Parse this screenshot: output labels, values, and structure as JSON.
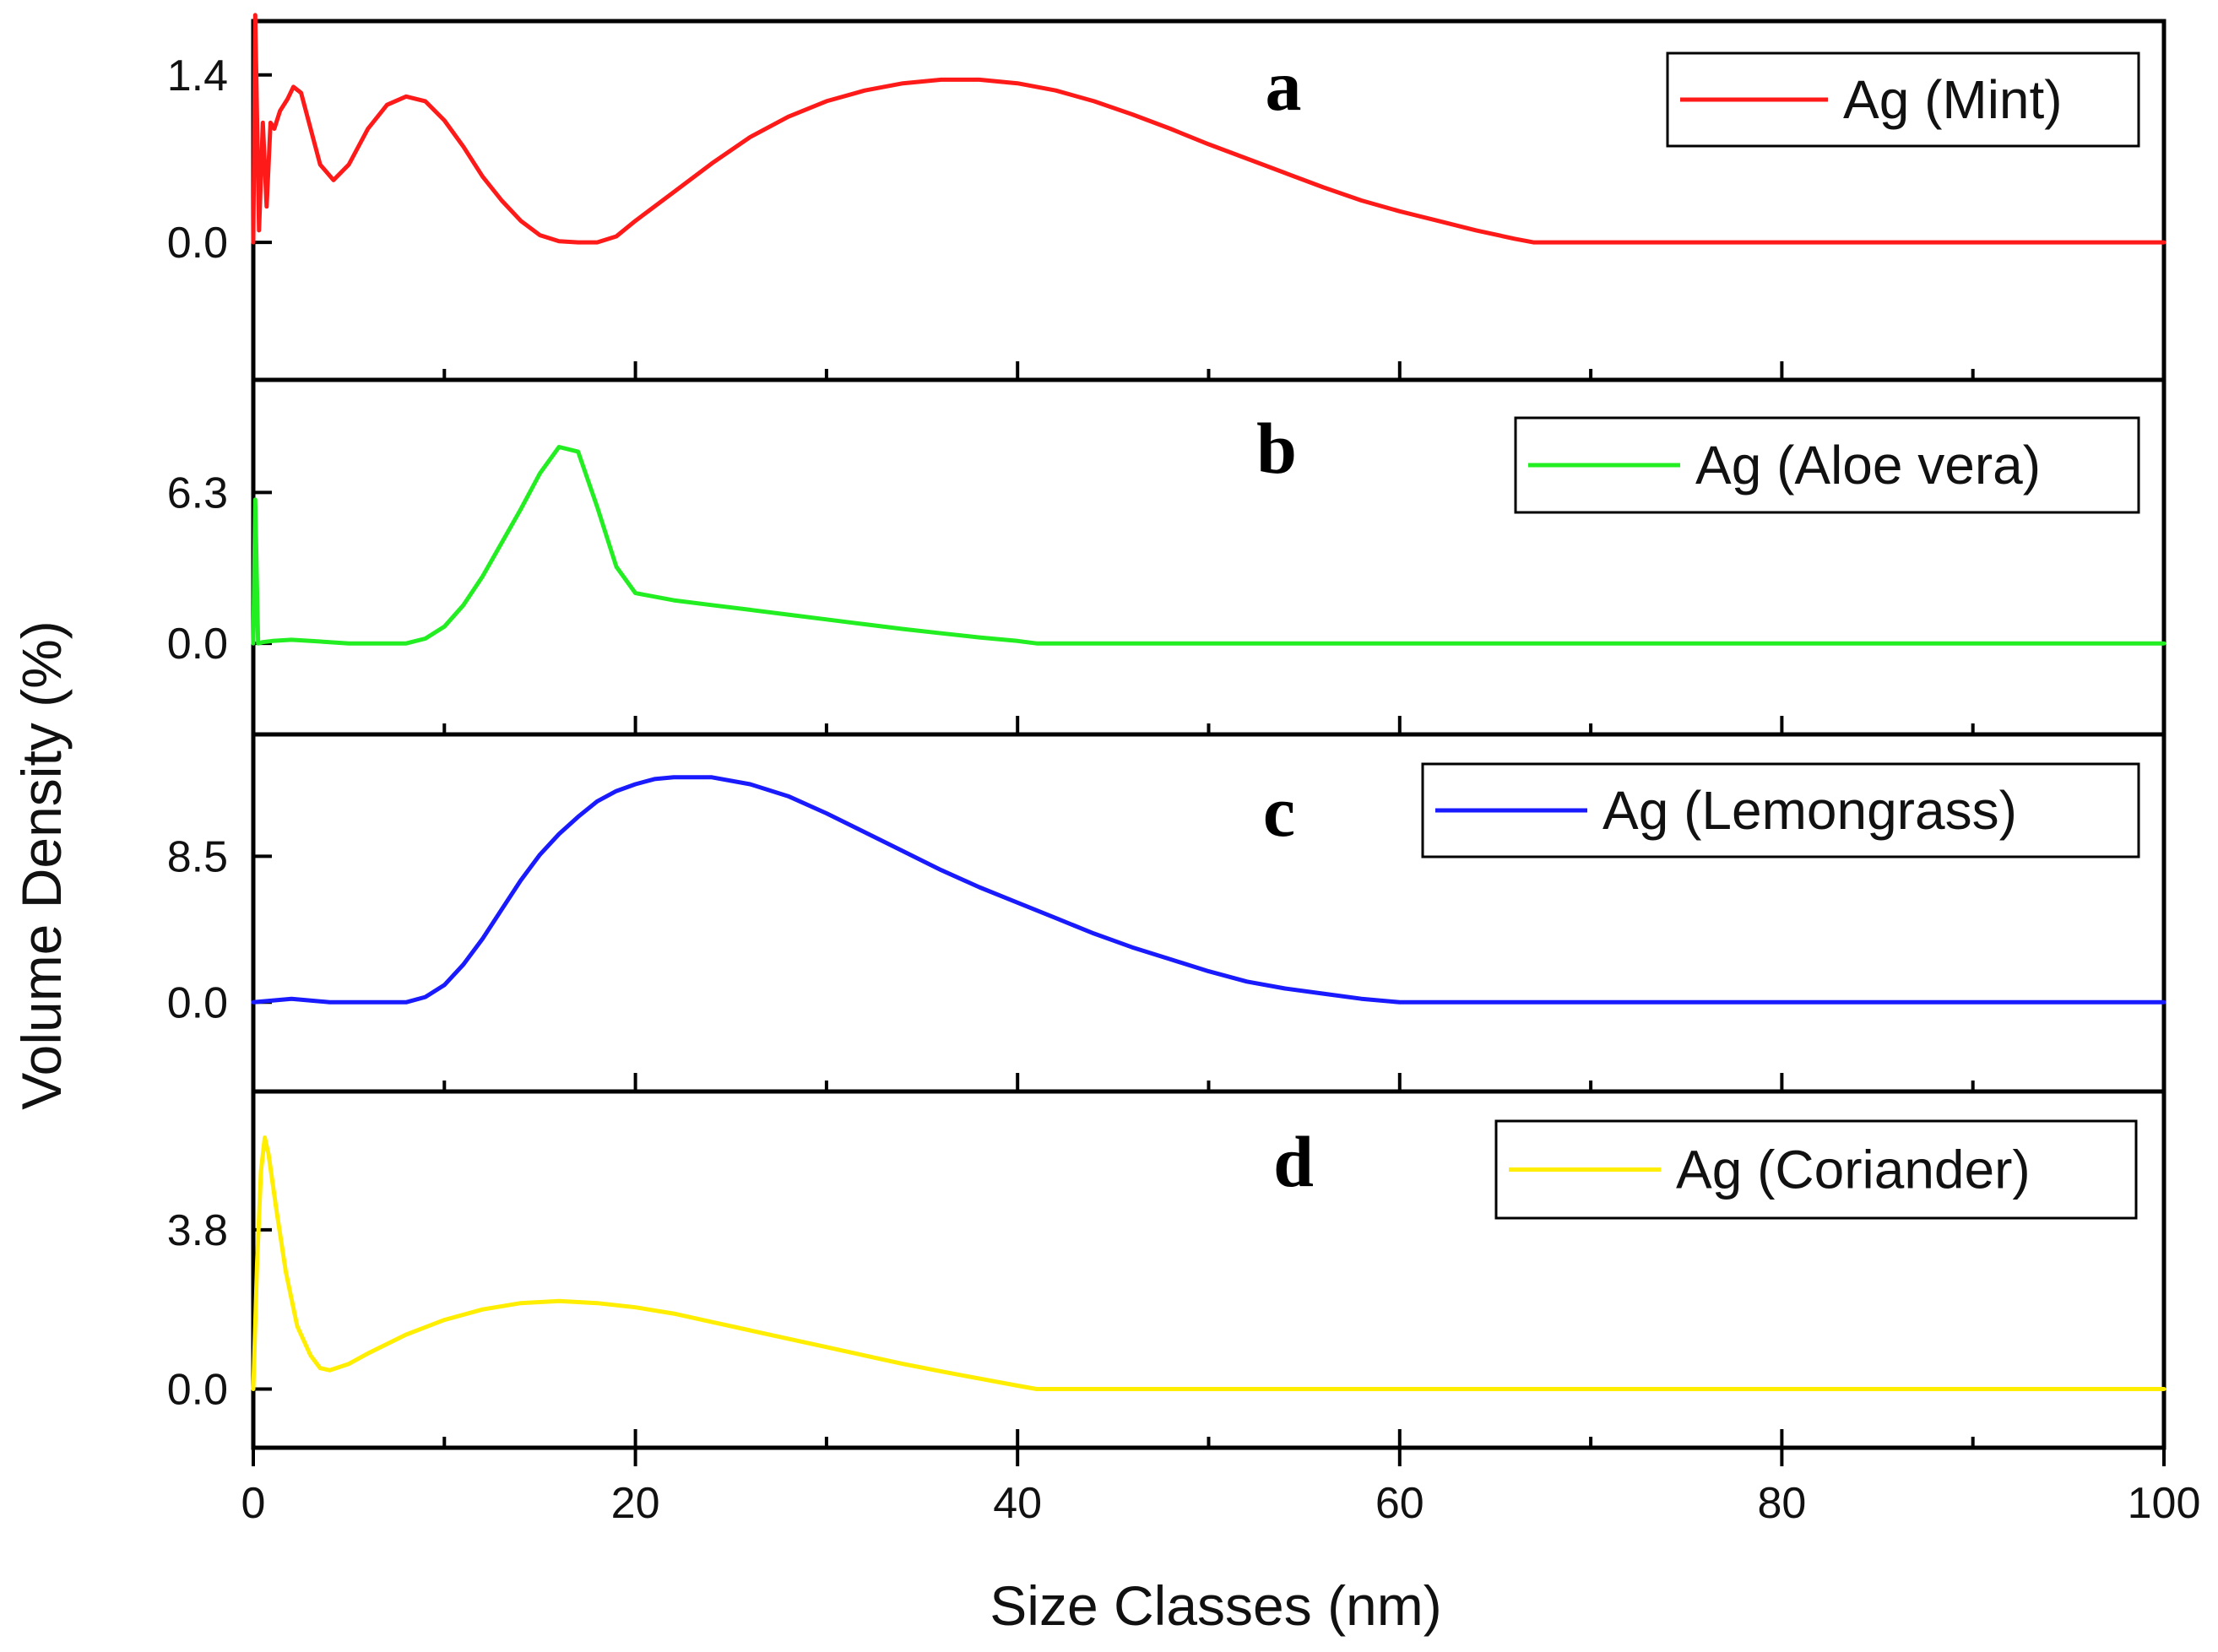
{
  "chart_data": {
    "type": "line",
    "xlabel": "Size Classes (nm)",
    "ylabel": "Volume Density (%)",
    "xlim": [
      0,
      100
    ],
    "x_ticks": [
      "0",
      "20",
      "40",
      "60",
      "80",
      "100"
    ],
    "x_tick_values": [
      0,
      20,
      40,
      60,
      80,
      100
    ],
    "panels": [
      {
        "letter": "a",
        "legend": "Ag (Mint)",
        "color": "#ff1a1a",
        "ylim": [
          -1.15,
          1.85
        ],
        "y_ticks": [
          "0.0",
          "1.4"
        ],
        "y_tick_values": [
          0.0,
          1.4
        ],
        "points": [
          [
            0,
            0
          ],
          [
            0.1,
            1.9
          ],
          [
            0.3,
            0.1
          ],
          [
            0.5,
            1.0
          ],
          [
            0.7,
            0.3
          ],
          [
            0.9,
            1.0
          ],
          [
            1.1,
            0.95
          ],
          [
            1.4,
            1.1
          ],
          [
            1.8,
            1.2
          ],
          [
            2.1,
            1.3
          ],
          [
            2.5,
            1.25
          ],
          [
            3,
            0.95
          ],
          [
            3.5,
            0.65
          ],
          [
            4.2,
            0.52
          ],
          [
            5,
            0.65
          ],
          [
            6,
            0.95
          ],
          [
            7,
            1.15
          ],
          [
            8,
            1.22
          ],
          [
            9,
            1.18
          ],
          [
            10,
            1.02
          ],
          [
            11,
            0.8
          ],
          [
            12,
            0.55
          ],
          [
            13,
            0.35
          ],
          [
            14,
            0.18
          ],
          [
            15,
            0.06
          ],
          [
            16,
            0.01
          ],
          [
            17,
            0.0
          ],
          [
            18,
            0.0
          ],
          [
            19,
            0.05
          ],
          [
            20,
            0.18
          ],
          [
            22,
            0.42
          ],
          [
            24,
            0.66
          ],
          [
            26,
            0.88
          ],
          [
            28,
            1.05
          ],
          [
            30,
            1.18
          ],
          [
            32,
            1.27
          ],
          [
            34,
            1.33
          ],
          [
            36,
            1.36
          ],
          [
            38,
            1.36
          ],
          [
            40,
            1.33
          ],
          [
            42,
            1.27
          ],
          [
            44,
            1.18
          ],
          [
            46,
            1.07
          ],
          [
            48,
            0.95
          ],
          [
            50,
            0.82
          ],
          [
            52,
            0.7
          ],
          [
            54,
            0.58
          ],
          [
            56,
            0.46
          ],
          [
            58,
            0.35
          ],
          [
            60,
            0.26
          ],
          [
            62,
            0.18
          ],
          [
            64,
            0.1
          ],
          [
            66,
            0.03
          ],
          [
            67,
            0.0
          ],
          [
            100,
            0.0
          ]
        ]
      },
      {
        "letter": "b",
        "legend": "Ag (Aloe vera)",
        "color": "#22ee22",
        "ylim": [
          -3.8,
          11.0
        ],
        "y_ticks": [
          "0.0",
          "6.3"
        ],
        "y_tick_values": [
          0.0,
          6.3
        ],
        "points": [
          [
            0,
            0
          ],
          [
            0.1,
            6.0
          ],
          [
            0.25,
            0.0
          ],
          [
            0.5,
            0.05
          ],
          [
            1,
            0.1
          ],
          [
            2,
            0.15
          ],
          [
            3,
            0.1
          ],
          [
            4,
            0.05
          ],
          [
            5,
            0.0
          ],
          [
            8,
            0.0
          ],
          [
            9,
            0.2
          ],
          [
            10,
            0.7
          ],
          [
            11,
            1.6
          ],
          [
            12,
            2.8
          ],
          [
            13,
            4.2
          ],
          [
            14,
            5.6
          ],
          [
            15,
            7.1
          ],
          [
            16,
            8.2
          ],
          [
            17,
            8.0
          ],
          [
            18,
            5.7
          ],
          [
            19,
            3.2
          ],
          [
            20,
            2.1
          ],
          [
            22,
            1.8
          ],
          [
            24,
            1.6
          ],
          [
            26,
            1.4
          ],
          [
            28,
            1.2
          ],
          [
            30,
            1.0
          ],
          [
            32,
            0.8
          ],
          [
            34,
            0.6
          ],
          [
            36,
            0.42
          ],
          [
            38,
            0.25
          ],
          [
            40,
            0.1
          ],
          [
            41,
            0.0
          ],
          [
            100,
            0.0
          ]
        ]
      },
      {
        "letter": "c",
        "legend": "Ag (Lemongrass)",
        "color": "#1a1aff",
        "ylim": [
          -5.2,
          15.6
        ],
        "y_ticks": [
          "0.0",
          "8.5"
        ],
        "y_tick_values": [
          0.0,
          8.5
        ],
        "points": [
          [
            0,
            0
          ],
          [
            1,
            0.1
          ],
          [
            2,
            0.2
          ],
          [
            3,
            0.1
          ],
          [
            4,
            0.0
          ],
          [
            8,
            0.0
          ],
          [
            9,
            0.3
          ],
          [
            10,
            1.0
          ],
          [
            11,
            2.2
          ],
          [
            12,
            3.7
          ],
          [
            13,
            5.4
          ],
          [
            14,
            7.1
          ],
          [
            15,
            8.6
          ],
          [
            16,
            9.8
          ],
          [
            17,
            10.8
          ],
          [
            18,
            11.7
          ],
          [
            19,
            12.3
          ],
          [
            20,
            12.7
          ],
          [
            21,
            13.0
          ],
          [
            22,
            13.1
          ],
          [
            24,
            13.1
          ],
          [
            26,
            12.7
          ],
          [
            28,
            12.0
          ],
          [
            30,
            11.0
          ],
          [
            32,
            9.9
          ],
          [
            34,
            8.8
          ],
          [
            36,
            7.7
          ],
          [
            38,
            6.7
          ],
          [
            40,
            5.8
          ],
          [
            42,
            4.9
          ],
          [
            44,
            4.0
          ],
          [
            46,
            3.2
          ],
          [
            48,
            2.5
          ],
          [
            50,
            1.8
          ],
          [
            52,
            1.2
          ],
          [
            54,
            0.8
          ],
          [
            56,
            0.5
          ],
          [
            58,
            0.2
          ],
          [
            60,
            0.0
          ],
          [
            100,
            0.0
          ]
        ]
      },
      {
        "letter": "d",
        "legend": "Ag (Coriander)",
        "color": "#ffee00",
        "ylim": [
          -1.4,
          7.1
        ],
        "y_ticks": [
          "0.0",
          "3.8"
        ],
        "y_tick_values": [
          0.0,
          3.8
        ],
        "points": [
          [
            0,
            0
          ],
          [
            0.2,
            3.0
          ],
          [
            0.4,
            5.2
          ],
          [
            0.6,
            6.0
          ],
          [
            0.8,
            5.6
          ],
          [
            1.2,
            4.3
          ],
          [
            1.7,
            2.8
          ],
          [
            2.3,
            1.5
          ],
          [
            3,
            0.8
          ],
          [
            3.5,
            0.5
          ],
          [
            4,
            0.45
          ],
          [
            5,
            0.6
          ],
          [
            6,
            0.85
          ],
          [
            8,
            1.3
          ],
          [
            10,
            1.65
          ],
          [
            12,
            1.9
          ],
          [
            14,
            2.05
          ],
          [
            16,
            2.1
          ],
          [
            18,
            2.05
          ],
          [
            20,
            1.95
          ],
          [
            22,
            1.8
          ],
          [
            24,
            1.6
          ],
          [
            26,
            1.4
          ],
          [
            28,
            1.2
          ],
          [
            30,
            1.0
          ],
          [
            32,
            0.8
          ],
          [
            34,
            0.6
          ],
          [
            36,
            0.42
          ],
          [
            38,
            0.25
          ],
          [
            40,
            0.08
          ],
          [
            41,
            0.0
          ],
          [
            100,
            0.0
          ]
        ]
      }
    ]
  }
}
